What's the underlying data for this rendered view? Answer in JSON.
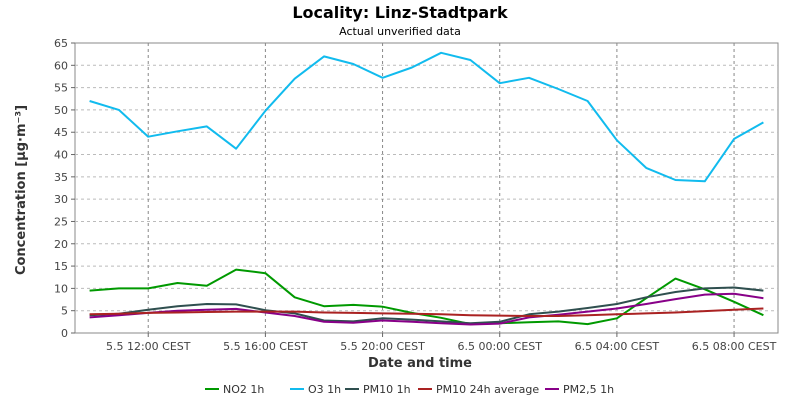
{
  "chart_data": {
    "type": "line",
    "title": "Locality: Linz-Stadtpark",
    "subtitle": "Actual unverified data",
    "xlabel": "Date and time",
    "ylabel": "Concentration [µg·m⁻³]",
    "ylim": [
      0,
      65
    ],
    "yticks": [
      0,
      5,
      10,
      15,
      20,
      25,
      30,
      35,
      40,
      45,
      50,
      55,
      60,
      65
    ],
    "xlim": [
      "2024-05-05 09:30",
      "2024-05-06 09:30"
    ],
    "xticks": [
      {
        "x": "2024-05-05 12:00",
        "label": "5.5 12:00 CEST"
      },
      {
        "x": "2024-05-05 16:00",
        "label": "5.5 16:00 CEST"
      },
      {
        "x": "2024-05-05 20:00",
        "label": "5.5 20:00 CEST"
      },
      {
        "x": "2024-05-06 00:00",
        "label": "6.5 00:00 CEST"
      },
      {
        "x": "2024-05-06 04:00",
        "label": "6.5 04:00 CEST"
      },
      {
        "x": "2024-05-06 08:00",
        "label": "6.5 08:00 CEST"
      }
    ],
    "grid": true,
    "legend_position": "bottom",
    "x": [
      "2024-05-05 10:00",
      "2024-05-05 11:00",
      "2024-05-05 12:00",
      "2024-05-05 13:00",
      "2024-05-05 14:00",
      "2024-05-05 15:00",
      "2024-05-05 16:00",
      "2024-05-05 17:00",
      "2024-05-05 18:00",
      "2024-05-05 19:00",
      "2024-05-05 20:00",
      "2024-05-05 21:00",
      "2024-05-05 22:00",
      "2024-05-05 23:00",
      "2024-05-06 00:00",
      "2024-05-06 01:00",
      "2024-05-06 02:00",
      "2024-05-06 03:00",
      "2024-05-06 04:00",
      "2024-05-06 05:00",
      "2024-05-06 06:00",
      "2024-05-06 07:00",
      "2024-05-06 08:00",
      "2024-05-06 09:00"
    ],
    "series": [
      {
        "name": "NO2 1h",
        "color": "#009900",
        "values": [
          9.5,
          10,
          10,
          11.2,
          10.6,
          14.2,
          13.4,
          8,
          6,
          6.3,
          5.9,
          4.5,
          3.4,
          2,
          2.2,
          2.4,
          2.6,
          2,
          3.3,
          7.8,
          12.2,
          9.8,
          7,
          4
        ]
      },
      {
        "name": "O3 1h",
        "color": "#11bbee",
        "values": [
          52,
          50,
          44,
          45.2,
          46.3,
          41.3,
          49.8,
          57,
          62,
          60.3,
          57.2,
          59.5,
          62.8,
          61.2,
          56,
          57.2,
          54.7,
          52,
          43.2,
          37,
          34.3,
          34,
          43.5,
          47.2
        ]
      },
      {
        "name": "PM10 1h",
        "color": "#2f4f4f",
        "values": [
          4,
          4.3,
          5.2,
          6,
          6.5,
          6.4,
          5.1,
          4.4,
          2.8,
          2.6,
          3.3,
          3,
          2.6,
          2.2,
          2.5,
          4.2,
          4.8,
          5.6,
          6.5,
          8,
          9.2,
          10,
          10.2,
          9.5
        ]
      },
      {
        "name": "PM10 24h average",
        "color": "#aa2222",
        "values": [
          4.2,
          4.3,
          4.5,
          4.6,
          4.7,
          4.8,
          4.8,
          4.8,
          4.6,
          4.5,
          4.4,
          4.3,
          4.2,
          4.0,
          3.9,
          3.8,
          3.8,
          4.0,
          4.2,
          4.4,
          4.6,
          4.9,
          5.2,
          5.5
        ]
      },
      {
        "name": "PM2,5 1h",
        "color": "#880088",
        "values": [
          3.5,
          4,
          4.5,
          5,
          5.2,
          5.4,
          4.6,
          3.8,
          2.5,
          2.3,
          2.8,
          2.5,
          2.2,
          1.9,
          2.1,
          3.5,
          4.1,
          4.8,
          5.5,
          6.5,
          7.6,
          8.6,
          8.8,
          7.8
        ]
      }
    ]
  }
}
